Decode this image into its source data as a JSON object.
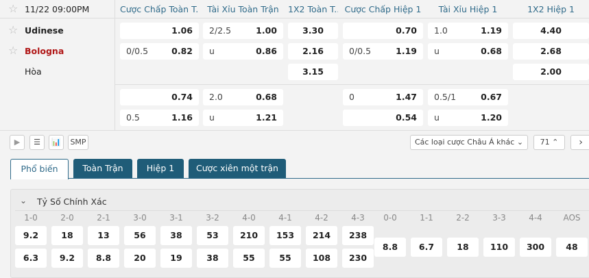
{
  "match": {
    "time": "11/22 09:00PM",
    "home": "Udinese",
    "away": "Bologna",
    "draw": "Hòa",
    "away_color": "#b01616"
  },
  "headers": [
    "Cược Chấp Toàn T...",
    "Tài Xỉu Toàn Trận",
    "1X2 Toàn T...",
    "Cược Chấp Hiệp 1",
    "Tài Xỉu Hiệp 1",
    "1X2 Hiệp 1"
  ],
  "main": {
    "hdp_ft": [
      {
        "h": "",
        "o": "1.06"
      },
      {
        "h": "0/0.5",
        "o": "0.82"
      }
    ],
    "ou_ft": [
      {
        "h": "2/2.5",
        "o": "1.00"
      },
      {
        "h": "u",
        "o": "0.86"
      }
    ],
    "x12_ft": [
      "3.30",
      "2.16",
      "3.15"
    ],
    "hdp_h1": [
      {
        "h": "",
        "o": "0.70"
      },
      {
        "h": "0/0.5",
        "o": "1.19"
      }
    ],
    "ou_h1": [
      {
        "h": "1.0",
        "o": "1.19"
      },
      {
        "h": "u",
        "o": "0.68"
      }
    ],
    "x12_h1": [
      "4.40",
      "2.68",
      "2.00"
    ]
  },
  "alt": {
    "hdp_ft": [
      {
        "h": "",
        "o": "0.74"
      },
      {
        "h": "0.5",
        "o": "1.16"
      }
    ],
    "ou_ft": [
      {
        "h": "2.0",
        "o": "0.68"
      },
      {
        "h": "u",
        "o": "1.21"
      }
    ],
    "hdp_h1": [
      {
        "h": "0",
        "o": "1.47"
      },
      {
        "h": "",
        "o": "0.54"
      }
    ],
    "ou_h1": [
      {
        "h": "0.5/1",
        "o": "0.67"
      },
      {
        "h": "u",
        "o": "1.20"
      }
    ]
  },
  "toolbar": {
    "smp": "SMP",
    "dropdown": "Các loại cược Châu Á khác",
    "count": "71"
  },
  "tabs": [
    "Phổ biến",
    "Toàn Trận",
    "Hiệp 1",
    "Cược xiên một trận"
  ],
  "section": {
    "title": "Tỷ Số Chính Xác",
    "scores": [
      {
        "l": "1-0",
        "a": "9.2",
        "b": "6.3"
      },
      {
        "l": "2-0",
        "a": "18",
        "b": "9.2"
      },
      {
        "l": "2-1",
        "a": "13",
        "b": "8.8"
      },
      {
        "l": "3-0",
        "a": "56",
        "b": "20"
      },
      {
        "l": "3-1",
        "a": "38",
        "b": "19"
      },
      {
        "l": "3-2",
        "a": "53",
        "b": "38"
      },
      {
        "l": "4-0",
        "a": "210",
        "b": "55"
      },
      {
        "l": "4-1",
        "a": "153",
        "b": "55"
      },
      {
        "l": "4-2",
        "a": "214",
        "b": "108"
      },
      {
        "l": "4-3",
        "a": "238",
        "b": "230"
      }
    ],
    "draws": [
      {
        "l": "0-0",
        "v": "8.8"
      },
      {
        "l": "1-1",
        "v": "6.7"
      },
      {
        "l": "2-2",
        "v": "18"
      },
      {
        "l": "3-3",
        "v": "110"
      },
      {
        "l": "4-4",
        "v": "300"
      },
      {
        "l": "AOS",
        "v": "48"
      }
    ]
  }
}
